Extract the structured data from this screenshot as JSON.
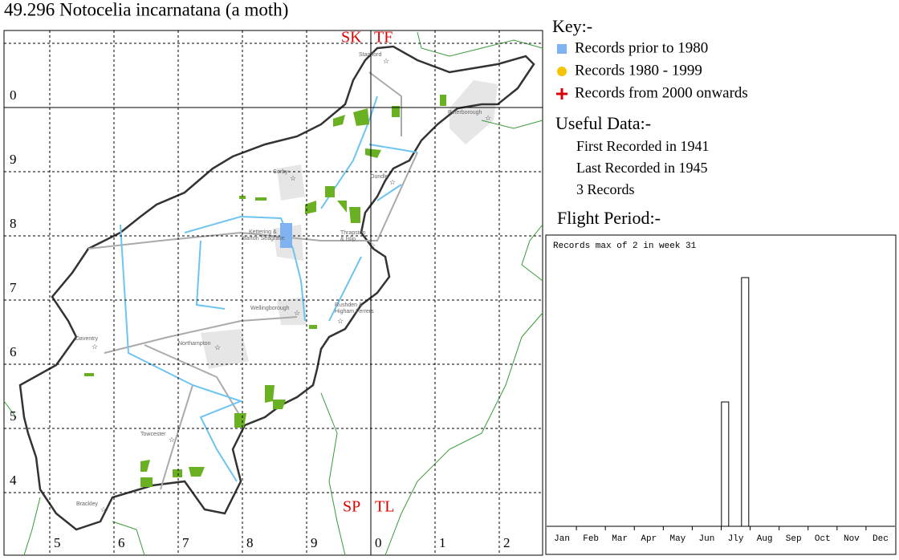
{
  "title": "49.296 Notocelia incarnatana (a moth)",
  "map": {
    "grid_squares": [
      "SK",
      "TF",
      "SP",
      "TL"
    ],
    "row_labels": [
      "0",
      "9",
      "8",
      "7",
      "6",
      "5",
      "4"
    ],
    "column_labels": [
      "5",
      "6",
      "7",
      "8",
      "9",
      "0",
      "1",
      "2"
    ],
    "places": [
      [
        "Stamford"
      ],
      [
        "Peterborough"
      ],
      [
        "Corby"
      ],
      [
        "Oundle"
      ],
      [
        "Kettering &",
        "Barton Seagrave"
      ],
      [
        "Thrapston",
        "& Islip"
      ],
      [
        "Wellingborough"
      ],
      [
        "Rushden &",
        "Higham Ferrers"
      ],
      [
        "Daventry"
      ],
      [
        "Northampton"
      ],
      [
        "Towcester"
      ],
      [
        "Brackley"
      ]
    ]
  },
  "key": {
    "title": "Key:-",
    "items": [
      "Records prior to 1980",
      "Records 1980 - 1999",
      "Records from 2000 onwards"
    ]
  },
  "useful_data": {
    "title": "Useful Data:-",
    "items": [
      "First Recorded in 1941",
      "Last Recorded in 1945",
      "3 Records"
    ]
  },
  "chart_data": {
    "type": "bar",
    "title": "Flight Period:-",
    "annotation": "Records max of 2 in week 31",
    "categories": [
      "Jan",
      "Feb",
      "Mar",
      "Apr",
      "May",
      "Jun",
      "Jly",
      "Aug",
      "Sep",
      "Oct",
      "Nov",
      "Dec"
    ],
    "x": [
      28,
      31
    ],
    "values": [
      1,
      2
    ],
    "xlim": [
      1,
      53
    ],
    "ylim": [
      0,
      2
    ],
    "color": "#ffffff"
  }
}
